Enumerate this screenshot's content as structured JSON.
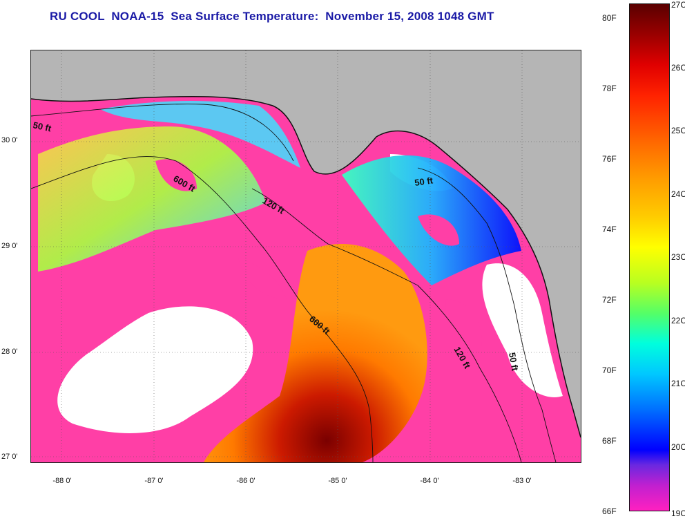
{
  "title": "RU COOL  NOAA-15  Sea Surface Temperature:  November 15, 2008 1048 GMT",
  "map": {
    "latitude_labels": [
      "30 0'",
      "29 0'",
      "28 0'",
      "27 0'"
    ],
    "longitude_labels": [
      "-88 0'",
      "-87 0'",
      "-86 0'",
      "-85 0'",
      "-84 0'",
      "-83 0'"
    ],
    "contour_labels": [
      "50 ft",
      "600 ft",
      "120 ft",
      "50 ft",
      "600 ft",
      "120 ft",
      "50 ft"
    ],
    "colors": {
      "land": "#b5b5b5",
      "cloud_mask": "#ff3fa6",
      "clear": "#ffffff"
    }
  },
  "colorbar": {
    "fahrenheit_labels": [
      "80F",
      "78F",
      "76F",
      "74F",
      "72F",
      "70F",
      "68F",
      "66F"
    ],
    "celsius_labels": [
      "27C",
      "26C",
      "25C",
      "24C",
      "23C",
      "22C",
      "21C",
      "20C",
      "19C"
    ],
    "range_f": [
      66,
      80.6
    ],
    "range_c": [
      19,
      27
    ]
  }
}
